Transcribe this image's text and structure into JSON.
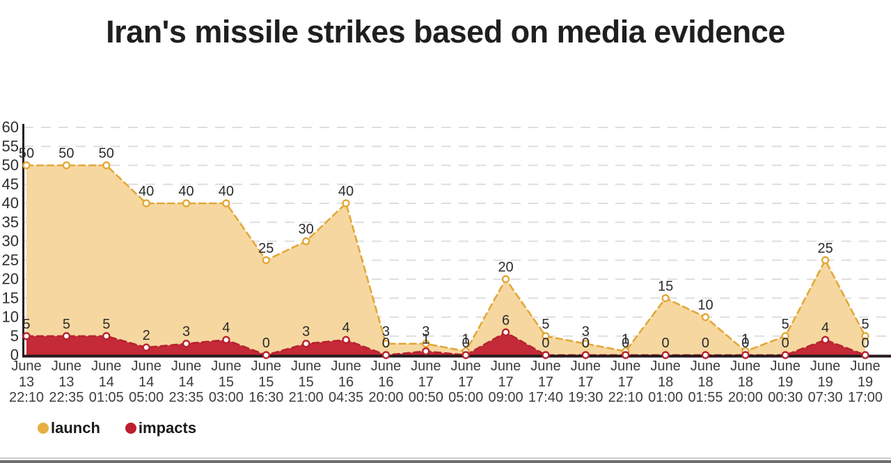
{
  "page": {
    "title": "Iran's missile strikes based on media evidence"
  },
  "legend": {
    "items": [
      {
        "label": "launch",
        "color": "#E5AF42"
      },
      {
        "label": "impacts",
        "color": "#BE1E31"
      }
    ]
  },
  "chart_data": {
    "type": "area",
    "title": "Iran's missile strikes based on media evidence",
    "xlabel": "",
    "ylabel": "",
    "ylim": [
      0,
      60
    ],
    "y_ticks": [
      0,
      5,
      10,
      15,
      20,
      25,
      30,
      35,
      40,
      45,
      50,
      55,
      60
    ],
    "grid": true,
    "legend_position": "bottom-left",
    "x_labels": [
      [
        "June",
        "13",
        "22:10"
      ],
      [
        "June",
        "13",
        "22:35"
      ],
      [
        "June",
        "14",
        "01:05"
      ],
      [
        "June",
        "14",
        "05:00"
      ],
      [
        "June",
        "14",
        "23:35"
      ],
      [
        "June",
        "15",
        "03:00"
      ],
      [
        "June",
        "15",
        "16:30"
      ],
      [
        "June",
        "15",
        "21:00"
      ],
      [
        "June",
        "16",
        "04:35"
      ],
      [
        "June",
        "16",
        "20:00"
      ],
      [
        "June",
        "17",
        "00:50"
      ],
      [
        "June",
        "17",
        "05:00"
      ],
      [
        "June",
        "17",
        "09:00"
      ],
      [
        "June",
        "17",
        "17:40"
      ],
      [
        "June",
        "17",
        "19:30"
      ],
      [
        "June",
        "17",
        "22:10"
      ],
      [
        "June",
        "18",
        "01:00"
      ],
      [
        "June",
        "18",
        "01:55"
      ],
      [
        "June",
        "18",
        "20:00"
      ],
      [
        "June",
        "19",
        "00:30"
      ],
      [
        "June",
        "19",
        "07:30"
      ],
      [
        "June",
        "19",
        "17:00"
      ]
    ],
    "series": [
      {
        "name": "launch",
        "line_color": "#E2A838",
        "fill_color": "#F6D7A0",
        "values": [
          50,
          50,
          50,
          40,
          40,
          40,
          25,
          30,
          40,
          3,
          3,
          1,
          20,
          5,
          3,
          1,
          15,
          10,
          1,
          5,
          25,
          5
        ]
      },
      {
        "name": "impacts",
        "line_color": "#B7222F",
        "fill_color": "#C42A38",
        "values": [
          5,
          5,
          5,
          2,
          3,
          4,
          0,
          3,
          4,
          0,
          1,
          0,
          6,
          0,
          0,
          0,
          0,
          0,
          0,
          0,
          4,
          0
        ]
      }
    ],
    "colors": {
      "grid": "#dedede",
      "axis": "#261a1c",
      "tick_label": "#2e2e2e",
      "value_label": "#2b2b2b",
      "x_label": "#3c3c3c"
    }
  }
}
